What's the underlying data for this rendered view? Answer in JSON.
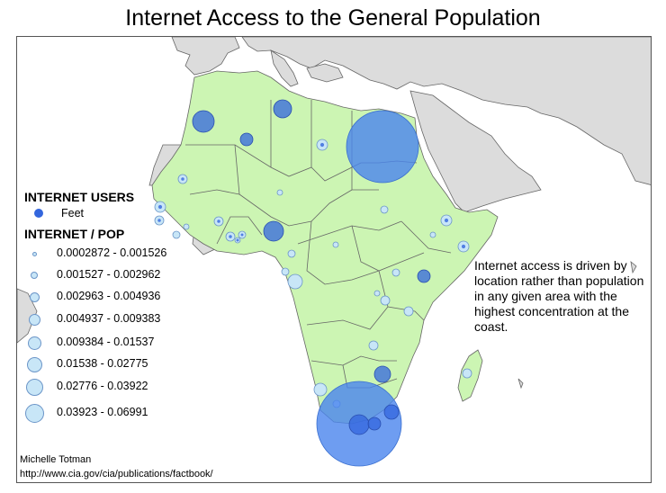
{
  "title": "Internet Access to the General Population",
  "legend": {
    "users_heading": "INTERNET USERS",
    "users_item": "Feet",
    "pop_heading": "INTERNET / POP",
    "classes": [
      "0.0002872 - 0.001526",
      "0.001527 - 0.002962",
      "0.002963 - 0.004936",
      "0.004937 - 0.009383",
      "0.009384 - 0.01537",
      "0.01538 - 0.02775",
      "0.02776 - 0.03922",
      "0.03923 - 0.06991"
    ]
  },
  "note": "Internet access is driven by location rather than population in any given area with the highest concentration at the coast.",
  "credits": {
    "author": "Michelle Totman",
    "source": "http://www.cia.gov/cia/publications/factbook/"
  },
  "colors": {
    "africa_fill": "#ccf5b3",
    "other_land": "#dcdcdc",
    "border": "#666666",
    "users_dot": "#3366dd",
    "big_circle": "#4a84ee",
    "pop_circle": "#c8e6f7",
    "pop_circle_stroke": "#6b95c8"
  }
}
